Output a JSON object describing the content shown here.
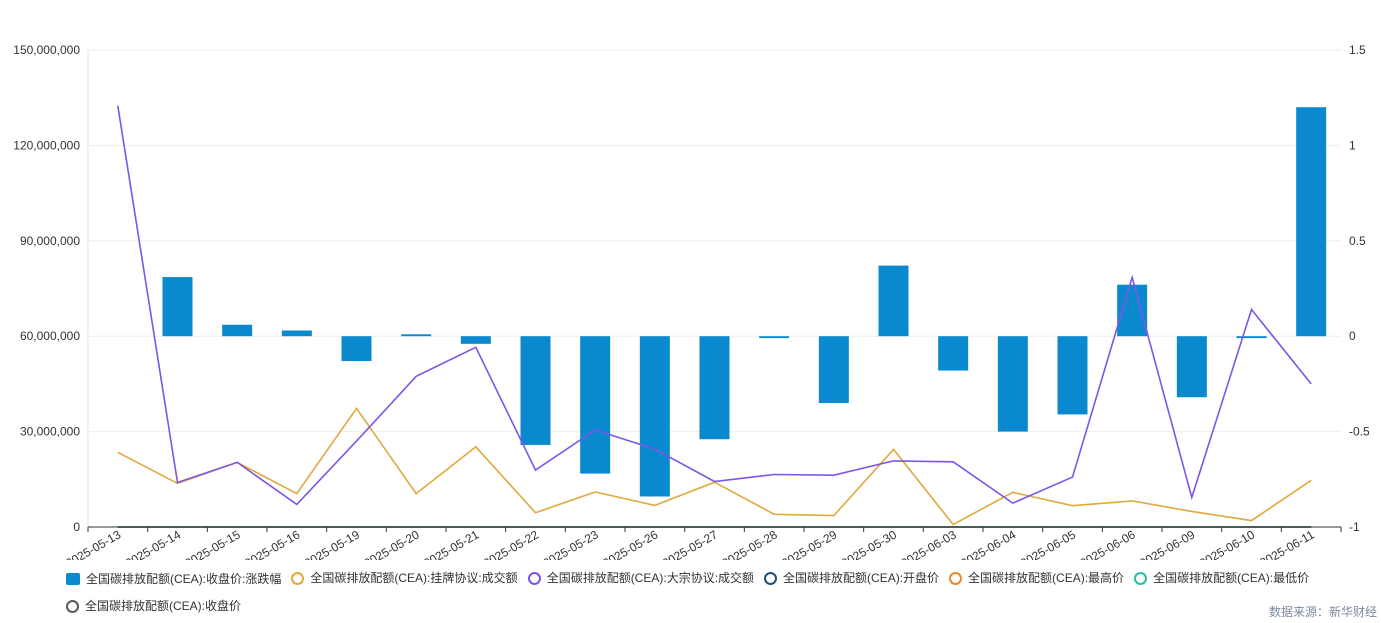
{
  "chart_data": {
    "type": "bar",
    "categories": [
      "2025-05-13",
      "2025-05-14",
      "2025-05-15",
      "2025-05-16",
      "2025-05-19",
      "2025-05-20",
      "2025-05-21",
      "2025-05-22",
      "2025-05-23",
      "2025-05-26",
      "2025-05-27",
      "2025-05-28",
      "2025-05-29",
      "2025-05-30",
      "2025-06-03",
      "2025-06-04",
      "2025-06-05",
      "2025-06-06",
      "2025-06-09",
      "2025-06-10",
      "2025-06-11"
    ],
    "y_left": {
      "min": 0,
      "max": 150000000,
      "ticks": [
        0,
        30000000,
        60000000,
        90000000,
        120000000,
        150000000
      ],
      "tick_labels": [
        "0",
        "30,000,000",
        "60,000,000",
        "90,000,000",
        "120,000,000",
        "150,000,000"
      ]
    },
    "y_right": {
      "min": -1,
      "max": 1.5,
      "ticks": [
        -1,
        -0.5,
        0,
        0.5,
        1,
        1.5
      ],
      "tick_labels": [
        "-1",
        "-0.5",
        "0",
        "0.5",
        "1",
        "1.5"
      ]
    },
    "series": [
      {
        "name": "全国碳排放配额(CEA):收盘价:涨跌幅",
        "type": "bar",
        "axis": "right",
        "color": "#0a89cf",
        "values": [
          0,
          0.31,
          0.06,
          0.03,
          -0.13,
          0.01,
          -0.04,
          -0.57,
          -0.72,
          -0.84,
          -0.54,
          -0.01,
          -0.35,
          0.37,
          -0.18,
          -0.5,
          -0.41,
          0.27,
          -0.32,
          -0.01,
          1.2
        ]
      },
      {
        "name": "全国碳排放配额(CEA):挂牌协议:成交额",
        "type": "line",
        "axis": "left",
        "color": "#e0a93c",
        "values": [
          23500000,
          13700000,
          20300000,
          10500000,
          37300000,
          10500000,
          25200000,
          4500000,
          11000000,
          6800000,
          14100000,
          4000000,
          3600000,
          24400000,
          800000,
          10900000,
          6700000,
          8200000,
          4900000,
          2000000,
          14700000
        ]
      },
      {
        "name": "全国碳排放配额(CEA):大宗协议:成交额",
        "type": "line",
        "axis": "left",
        "color": "#7d55e8",
        "values": [
          132500000,
          14000000,
          20300000,
          7100000,
          27000000,
          47400000,
          56500000,
          17900000,
          30500000,
          24500000,
          14300000,
          16500000,
          16300000,
          20800000,
          20500000,
          7500000,
          15700000,
          78500000,
          9300000,
          68400000,
          45000000
        ]
      },
      {
        "name": "全国碳排放配额(CEA):开盘价",
        "type": "line",
        "axis": "left",
        "color": "#1f4e79",
        "values": [
          72.5,
          72.8,
          73.1,
          73.2,
          73.3,
          73.1,
          73.2,
          72.9,
          72.4,
          71.8,
          71.5,
          71.2,
          71.1,
          71.0,
          71.3,
          71.1,
          70.8,
          70.5,
          70.7,
          70.5,
          70.4
        ]
      },
      {
        "name": "全国碳排放配额(CEA):最高价",
        "type": "line",
        "axis": "left",
        "color": "#e8892b",
        "values": [
          73.5,
          73.6,
          73.8,
          73.9,
          73.9,
          73.8,
          73.8,
          73.4,
          72.9,
          72.3,
          72.0,
          71.8,
          71.6,
          71.7,
          71.8,
          71.6,
          71.3,
          71.2,
          71.2,
          71.0,
          71.4
        ]
      },
      {
        "name": "全国碳排放配额(CEA):最低价",
        "type": "line",
        "axis": "left",
        "color": "#22c3a3",
        "values": [
          72.0,
          72.3,
          72.8,
          72.9,
          72.7,
          72.8,
          72.7,
          72.2,
          71.7,
          71.1,
          70.9,
          70.9,
          70.7,
          70.8,
          70.9,
          70.6,
          70.3,
          70.2,
          70.2,
          70.1,
          70.2
        ]
      },
      {
        "name": "全国碳排放配额(CEA):收盘价",
        "type": "line",
        "axis": "left",
        "color": "#555a5e",
        "values": [
          73.0,
          73.2,
          73.3,
          73.3,
          73.2,
          73.2,
          73.1,
          72.7,
          72.2,
          71.6,
          71.2,
          71.2,
          70.9,
          71.2,
          71.1,
          70.8,
          70.5,
          70.7,
          70.5,
          70.5,
          71.3
        ]
      }
    ],
    "legend_position": "bottom-left"
  },
  "source": "数据来源：新华财经"
}
